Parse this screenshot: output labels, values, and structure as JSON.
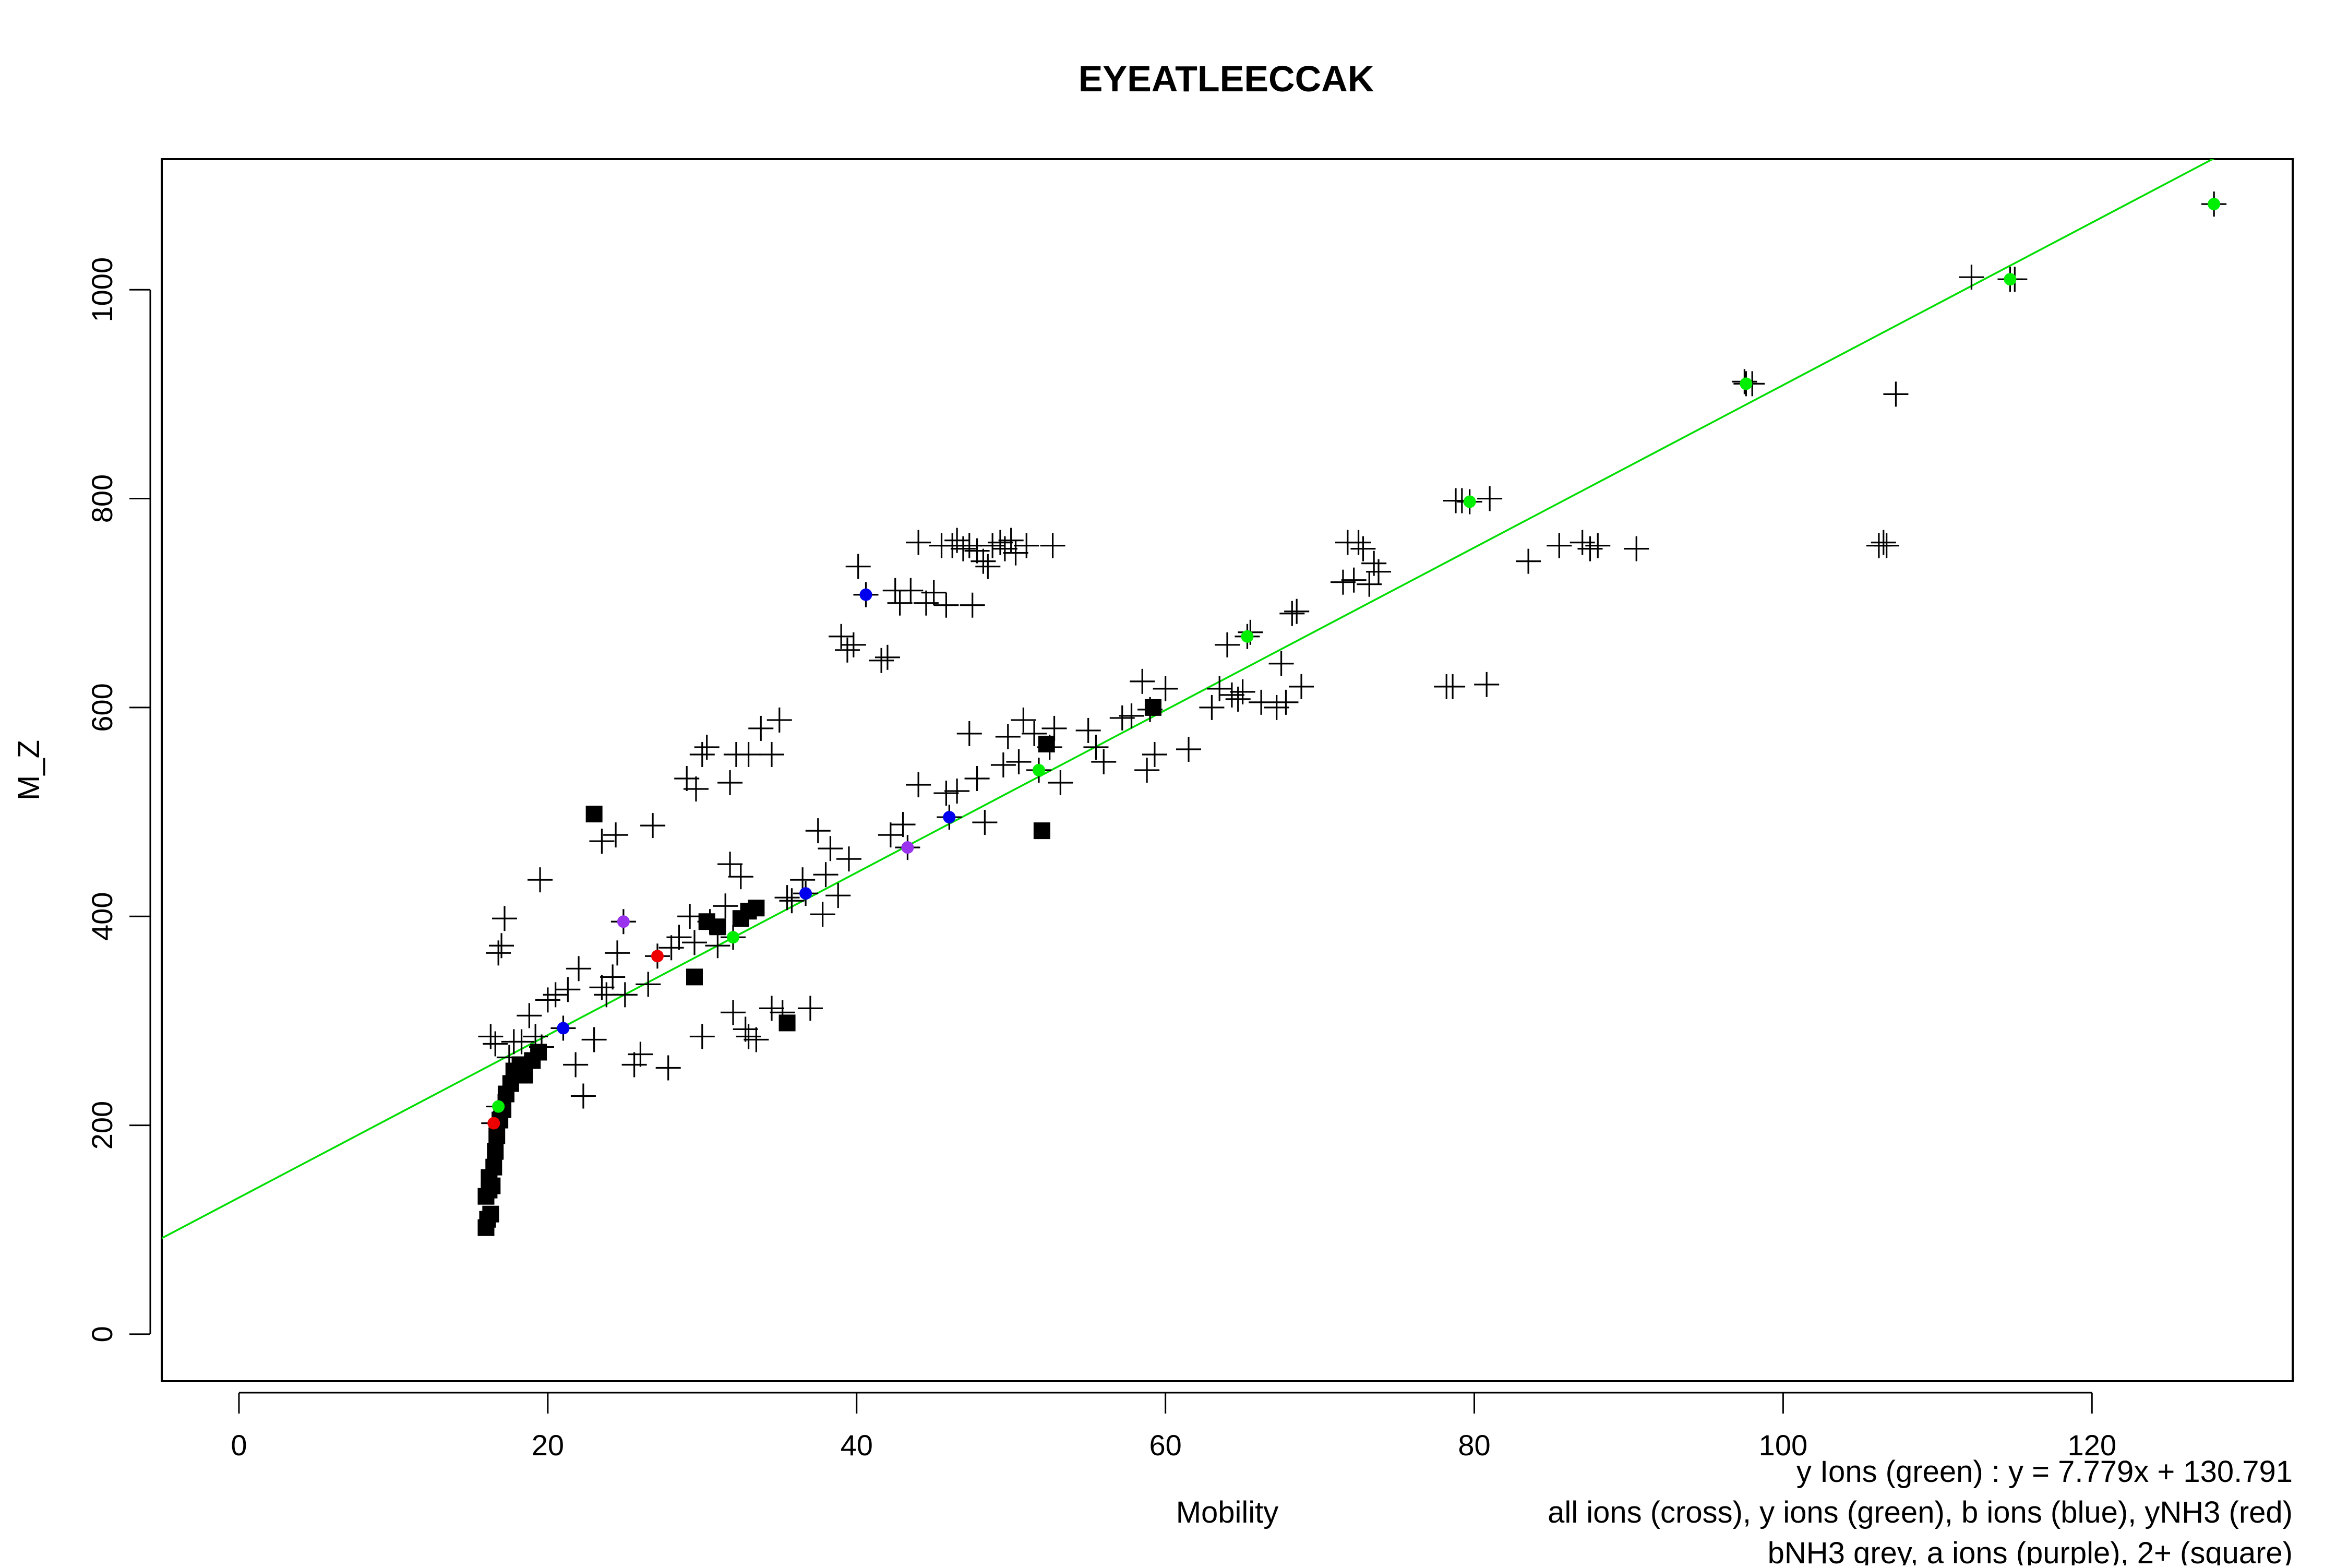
{
  "chart_data": {
    "type": "scatter",
    "title": "EYEATLEECCAK",
    "xlabel": "Mobility",
    "ylabel": "M_Z",
    "xlim": [
      -5,
      133
    ],
    "ylim": [
      -45,
      1125
    ],
    "x_ticks": [
      0,
      20,
      40,
      60,
      80,
      100,
      120
    ],
    "y_ticks": [
      0,
      200,
      400,
      600,
      800,
      1000
    ],
    "grid": false,
    "legend": "none",
    "annotations": [
      "y Ions (green) : y = 7.779x + 130.791",
      "all ions (cross), y ions (green), b ions (blue), yNH3 (red)",
      "bNH3 grey, a ions (purple), 2+ (square)"
    ],
    "fit_line": {
      "slope": 7.779,
      "intercept": 130.791,
      "color": "#00dd00"
    },
    "colors": {
      "all_ions": "#000000",
      "y_ions": "#00ee00",
      "b_ions": "#0000ee",
      "yNH3": "#ee0000",
      "a_ions": "#9933ee",
      "axes": "#000000"
    },
    "series": [
      {
        "kind": "cross",
        "color": "#000000",
        "points": [
          [
            16.3,
            285
          ],
          [
            16.6,
            278
          ],
          [
            16.8,
            365
          ],
          [
            17.0,
            372
          ],
          [
            17.2,
            398
          ],
          [
            19.5,
            435
          ],
          [
            17.5,
            265
          ],
          [
            17.8,
            280
          ],
          [
            18.3,
            280
          ],
          [
            18.8,
            305
          ],
          [
            19.2,
            285
          ],
          [
            19.6,
            275
          ],
          [
            20.0,
            320
          ],
          [
            20.5,
            325
          ],
          [
            21.3,
            330
          ],
          [
            22.0,
            350
          ],
          [
            21.8,
            258
          ],
          [
            22.3,
            228
          ],
          [
            23.0,
            282
          ],
          [
            23.5,
            332
          ],
          [
            23.8,
            325
          ],
          [
            24.2,
            342
          ],
          [
            24.5,
            365
          ],
          [
            25.0,
            325
          ],
          [
            25.6,
            258
          ],
          [
            26.0,
            268
          ],
          [
            26.5,
            335
          ],
          [
            27.8,
            255
          ],
          [
            28.0,
            370
          ],
          [
            28.5,
            380
          ],
          [
            29.2,
            400
          ],
          [
            29.5,
            375
          ],
          [
            30.0,
            285
          ],
          [
            30.5,
            395
          ],
          [
            31.0,
            372
          ],
          [
            31.5,
            410
          ],
          [
            31.8,
            450
          ],
          [
            32.0,
            308
          ],
          [
            32.5,
            438
          ],
          [
            32.8,
            292
          ],
          [
            33.0,
            285
          ],
          [
            33.5,
            282
          ],
          [
            34.5,
            312
          ],
          [
            35.2,
            308
          ],
          [
            35.5,
            418
          ],
          [
            35.8,
            415
          ],
          [
            36.5,
            435
          ],
          [
            37.0,
            312
          ],
          [
            37.5,
            482
          ],
          [
            37.8,
            402
          ],
          [
            38.0,
            440
          ],
          [
            38.3,
            465
          ],
          [
            38.8,
            420
          ],
          [
            39.5,
            455
          ],
          [
            23.5,
            472
          ],
          [
            24.4,
            478
          ],
          [
            26.8,
            487
          ],
          [
            29.0,
            532
          ],
          [
            29.6,
            522
          ],
          [
            30.0,
            555
          ],
          [
            30.3,
            562
          ],
          [
            31.8,
            528
          ],
          [
            32.2,
            555
          ],
          [
            33.0,
            555
          ],
          [
            33.8,
            580
          ],
          [
            34.5,
            555
          ],
          [
            35.0,
            588
          ],
          [
            39.0,
            668
          ],
          [
            39.4,
            655
          ],
          [
            39.8,
            660
          ],
          [
            40.1,
            735
          ],
          [
            41.6,
            645
          ],
          [
            42.0,
            648
          ],
          [
            42.5,
            712
          ],
          [
            42.8,
            700
          ],
          [
            43.5,
            712
          ],
          [
            44.0,
            758
          ],
          [
            44.5,
            700
          ],
          [
            45.0,
            710
          ],
          [
            45.5,
            755
          ],
          [
            45.8,
            698
          ],
          [
            46.2,
            755
          ],
          [
            46.5,
            760
          ],
          [
            46.9,
            752
          ],
          [
            47.3,
            755
          ],
          [
            47.5,
            698
          ],
          [
            47.8,
            750
          ],
          [
            48.2,
            740
          ],
          [
            48.5,
            735
          ],
          [
            48.8,
            755
          ],
          [
            49.3,
            758
          ],
          [
            49.6,
            752
          ],
          [
            50.0,
            760
          ],
          [
            50.3,
            748
          ],
          [
            51.0,
            755
          ],
          [
            52.7,
            755
          ],
          [
            42.2,
            478
          ],
          [
            43.0,
            488
          ],
          [
            44.0,
            526
          ],
          [
            45.8,
            518
          ],
          [
            46.5,
            520
          ],
          [
            47.3,
            575
          ],
          [
            47.8,
            532
          ],
          [
            48.3,
            490
          ],
          [
            49.5,
            545
          ],
          [
            49.8,
            572
          ],
          [
            50.5,
            548
          ],
          [
            50.8,
            588
          ],
          [
            51.5,
            575
          ],
          [
            52.5,
            562
          ],
          [
            52.8,
            580
          ],
          [
            53.2,
            528
          ],
          [
            55.0,
            578
          ],
          [
            55.5,
            562
          ],
          [
            56.0,
            548
          ],
          [
            57.2,
            590
          ],
          [
            57.8,
            592
          ],
          [
            58.5,
            625
          ],
          [
            58.8,
            540
          ],
          [
            59.0,
            598
          ],
          [
            59.3,
            555
          ],
          [
            60.0,
            618
          ],
          [
            61.5,
            560
          ],
          [
            63.0,
            600
          ],
          [
            63.5,
            618
          ],
          [
            64.0,
            660
          ],
          [
            64.3,
            612
          ],
          [
            64.7,
            608
          ],
          [
            65.0,
            615
          ],
          [
            65.5,
            672
          ],
          [
            66.2,
            605
          ],
          [
            67.2,
            600
          ],
          [
            67.5,
            642
          ],
          [
            67.8,
            605
          ],
          [
            68.2,
            690
          ],
          [
            68.5,
            692
          ],
          [
            68.8,
            620
          ],
          [
            71.5,
            720
          ],
          [
            71.8,
            758
          ],
          [
            72.2,
            722
          ],
          [
            72.5,
            758
          ],
          [
            72.8,
            752
          ],
          [
            73.2,
            718
          ],
          [
            73.5,
            738
          ],
          [
            73.8,
            730
          ],
          [
            78.2,
            620
          ],
          [
            78.6,
            620
          ],
          [
            78.8,
            798
          ],
          [
            79.2,
            798
          ],
          [
            80.8,
            622
          ],
          [
            81.0,
            800
          ],
          [
            83.5,
            740
          ],
          [
            85.5,
            755
          ],
          [
            87.0,
            758
          ],
          [
            87.5,
            752
          ],
          [
            88.0,
            755
          ],
          [
            90.5,
            752
          ],
          [
            97.5,
            912
          ],
          [
            98.0,
            910
          ],
          [
            106.2,
            755
          ],
          [
            106.5,
            758
          ],
          [
            106.7,
            755
          ],
          [
            107.3,
            900
          ],
          [
            112.2,
            1012
          ],
          [
            115.0,
            1010
          ],
          [
            127.9,
            1082
          ]
        ]
      },
      {
        "kind": "square",
        "color": "#000000",
        "points": [
          [
            16.0,
            102
          ],
          [
            16.1,
            110
          ],
          [
            16.3,
            115
          ],
          [
            16.0,
            132
          ],
          [
            16.2,
            138
          ],
          [
            16.4,
            142
          ],
          [
            16.2,
            150
          ],
          [
            16.5,
            160
          ],
          [
            16.6,
            175
          ],
          [
            16.7,
            190
          ],
          [
            16.9,
            205
          ],
          [
            17.1,
            215
          ],
          [
            17.3,
            230
          ],
          [
            17.6,
            240
          ],
          [
            17.8,
            252
          ],
          [
            18.2,
            258
          ],
          [
            18.5,
            248
          ],
          [
            19.0,
            262
          ],
          [
            19.4,
            270
          ],
          [
            23.0,
            498
          ],
          [
            29.5,
            342
          ],
          [
            30.3,
            395
          ],
          [
            31.0,
            390
          ],
          [
            32.5,
            398
          ],
          [
            33.0,
            405
          ],
          [
            33.5,
            408
          ],
          [
            35.5,
            298
          ],
          [
            52.0,
            482
          ],
          [
            52.3,
            565
          ],
          [
            59.2,
            600
          ]
        ]
      },
      {
        "kind": "dot",
        "color": "#00ee00",
        "points": [
          [
            16.8,
            218
          ],
          [
            32.0,
            380
          ],
          [
            51.8,
            540
          ],
          [
            65.3,
            668
          ],
          [
            79.7,
            797
          ],
          [
            97.6,
            910
          ],
          [
            114.7,
            1010
          ],
          [
            127.9,
            1082
          ]
        ]
      },
      {
        "kind": "dot",
        "color": "#0000ee",
        "points": [
          [
            21.0,
            293
          ],
          [
            36.7,
            422
          ],
          [
            40.6,
            708
          ],
          [
            46.0,
            495
          ]
        ]
      },
      {
        "kind": "dot",
        "color": "#ee0000",
        "points": [
          [
            16.5,
            202
          ],
          [
            27.1,
            362
          ]
        ]
      },
      {
        "kind": "dot",
        "color": "#9933ee",
        "points": [
          [
            24.9,
            395
          ],
          [
            43.3,
            466
          ]
        ]
      }
    ]
  }
}
